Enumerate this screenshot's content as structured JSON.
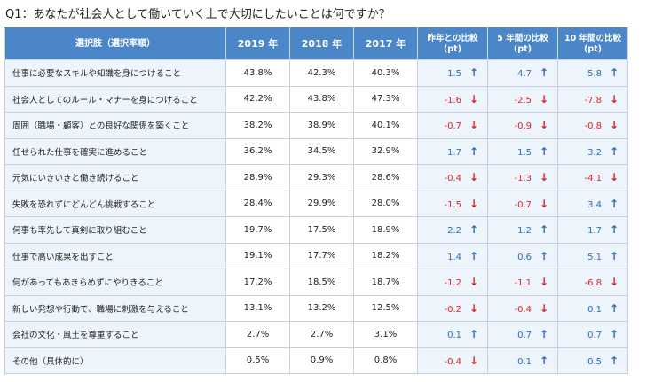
{
  "question": "Q1：あなたが社会人として働いていく上で大切にしたいことは何ですか？",
  "headers": {
    "choice": "選択肢（選択率順）",
    "y2019": "2019 年",
    "y2018": "2018 年",
    "y2017": "2017 年",
    "cmp_prev": [
      "昨年との比較",
      "(pt)"
    ],
    "cmp_5y": [
      "5 年間の比較",
      "(pt)"
    ],
    "cmp_10y": [
      "10 年間の比較",
      "(pt)"
    ]
  },
  "colors": {
    "header_bg": "#4a86c8",
    "row_bg": "#eef4fb",
    "up": "#2d6cc0",
    "down": "#e0232b"
  },
  "icons": {
    "up": "arrow-up-icon",
    "down": "arrow-down-icon"
  },
  "rows": [
    {
      "label": "仕事に必要なスキルや知識を身につけること",
      "y2019": "43.8%",
      "y2018": "42.3%",
      "y2017": "40.3%",
      "diffs": [
        {
          "value": "1.5",
          "dir": "up"
        },
        {
          "value": "4.7",
          "dir": "up"
        },
        {
          "value": "5.8",
          "dir": "up"
        }
      ]
    },
    {
      "label": "社会人としてのルール・マナーを身につけること",
      "y2019": "42.2%",
      "y2018": "43.8%",
      "y2017": "47.3%",
      "diffs": [
        {
          "value": "-1.6",
          "dir": "down"
        },
        {
          "value": "-2.5",
          "dir": "down"
        },
        {
          "value": "-7.8",
          "dir": "down"
        }
      ]
    },
    {
      "label": "周囲（職場・顧客）との良好な関係を築くこと",
      "y2019": "38.2%",
      "y2018": "38.9%",
      "y2017": "40.1%",
      "diffs": [
        {
          "value": "-0.7",
          "dir": "down"
        },
        {
          "value": "-0.9",
          "dir": "down"
        },
        {
          "value": "-0.8",
          "dir": "down"
        }
      ]
    },
    {
      "label": "任せられた仕事を確実に進めること",
      "y2019": "36.2%",
      "y2018": "34.5%",
      "y2017": "32.9%",
      "diffs": [
        {
          "value": "1.7",
          "dir": "up"
        },
        {
          "value": "1.5",
          "dir": "up"
        },
        {
          "value": "3.2",
          "dir": "up"
        }
      ]
    },
    {
      "label": "元気にいきいきと働き続けること",
      "y2019": "28.9%",
      "y2018": "29.3%",
      "y2017": "28.6%",
      "diffs": [
        {
          "value": "-0.4",
          "dir": "down"
        },
        {
          "value": "-1.3",
          "dir": "down"
        },
        {
          "value": "-4.1",
          "dir": "down"
        }
      ]
    },
    {
      "label": "失敗を恐れずにどんどん挑戦すること",
      "y2019": "28.4%",
      "y2018": "29.9%",
      "y2017": "28.0%",
      "diffs": [
        {
          "value": "-1.5",
          "dir": "down"
        },
        {
          "value": "-0.7",
          "dir": "down"
        },
        {
          "value": "3.4",
          "dir": "up"
        }
      ]
    },
    {
      "label": "何事も率先して真剣に取り組むこと",
      "y2019": "19.7%",
      "y2018": "17.5%",
      "y2017": "18.9%",
      "diffs": [
        {
          "value": "2.2",
          "dir": "up"
        },
        {
          "value": "1.2",
          "dir": "up"
        },
        {
          "value": "1.7",
          "dir": "up"
        }
      ]
    },
    {
      "label": "仕事で高い成果を出すこと",
      "y2019": "19.1%",
      "y2018": "17.7%",
      "y2017": "18.2%",
      "diffs": [
        {
          "value": "1.4",
          "dir": "up"
        },
        {
          "value": "0.6",
          "dir": "up"
        },
        {
          "value": "5.1",
          "dir": "up"
        }
      ]
    },
    {
      "label": "何があってもあきらめずにやりきること",
      "y2019": "17.2%",
      "y2018": "18.5%",
      "y2017": "18.7%",
      "diffs": [
        {
          "value": "-1.2",
          "dir": "down"
        },
        {
          "value": "-1.1",
          "dir": "down"
        },
        {
          "value": "-6.8",
          "dir": "down"
        }
      ]
    },
    {
      "label": "新しい発想や行動で、職場に刺激を与えること",
      "y2019": "13.1%",
      "y2018": "13.2%",
      "y2017": "12.5%",
      "diffs": [
        {
          "value": "-0.2",
          "dir": "down"
        },
        {
          "value": "-0.4",
          "dir": "down"
        },
        {
          "value": "0.1",
          "dir": "up"
        }
      ]
    },
    {
      "label": "会社の文化・風土を尊重すること",
      "y2019": "2.7%",
      "y2018": "2.7%",
      "y2017": "3.1%",
      "diffs": [
        {
          "value": "0.1",
          "dir": "up"
        },
        {
          "value": "0.7",
          "dir": "up"
        },
        {
          "value": "0.7",
          "dir": "up"
        }
      ]
    },
    {
      "label": "その他（具体的に）",
      "y2019": "0.5%",
      "y2018": "0.9%",
      "y2017": "0.8%",
      "diffs": [
        {
          "value": "-0.4",
          "dir": "down"
        },
        {
          "value": "0.1",
          "dir": "up"
        },
        {
          "value": "0.5",
          "dir": "up"
        }
      ]
    }
  ]
}
